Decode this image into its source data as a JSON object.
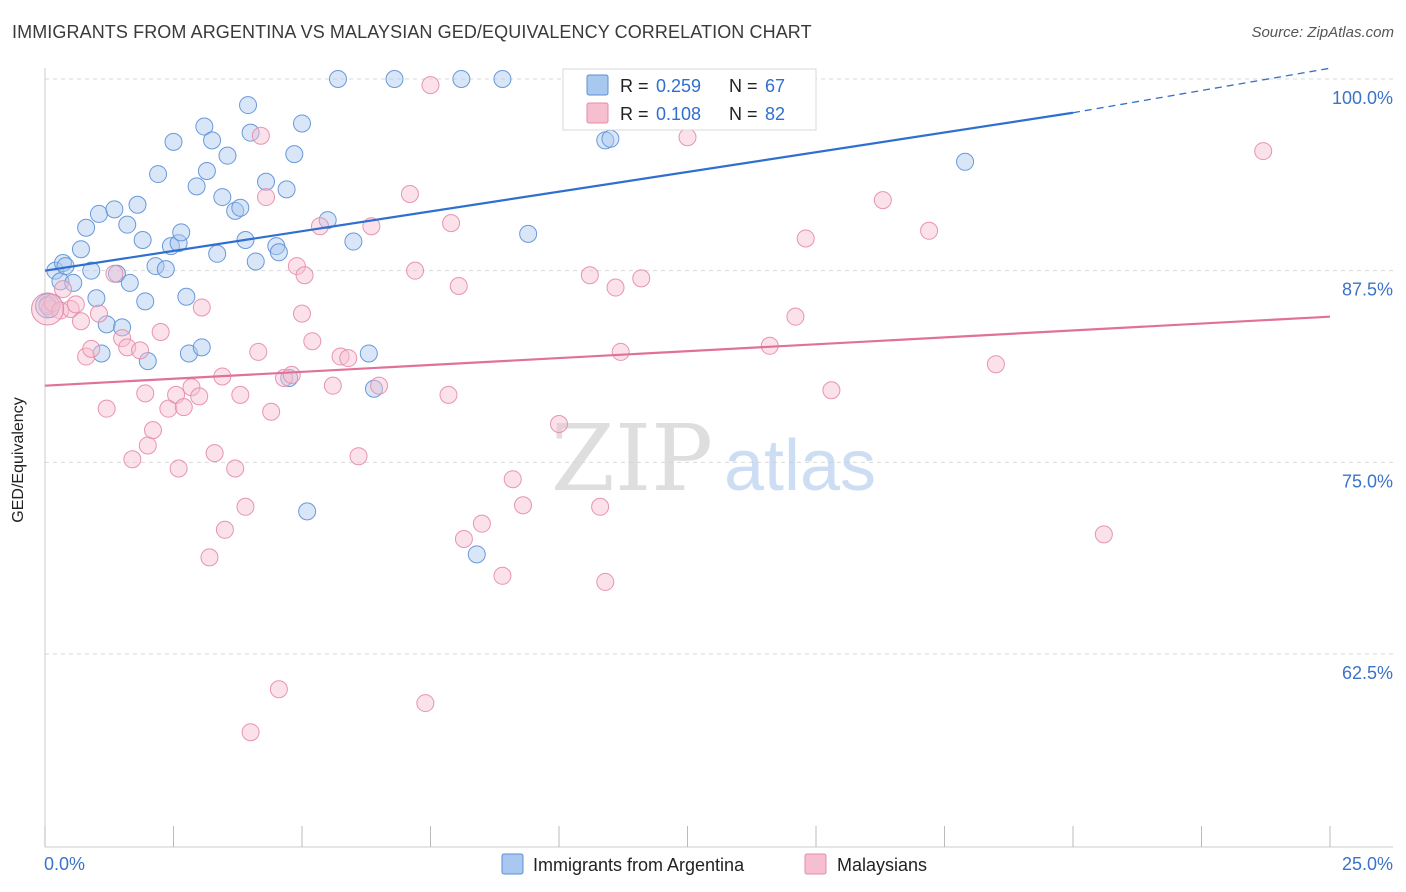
{
  "title": "IMMIGRANTS FROM ARGENTINA VS MALAYSIAN GED/EQUIVALENCY CORRELATION CHART",
  "source": "Source: ZipAtlas.com",
  "watermark": {
    "zip": "ZIP",
    "atlas": "atlas"
  },
  "colors": {
    "blue_fill": "#a9c8ef",
    "blue_stroke": "#5b8fd6",
    "blue_line": "#2f6fd0",
    "pink_fill": "#f6bfd0",
    "pink_stroke": "#e58aa8",
    "pink_line": "#e0719a",
    "tick_label": "#3b73c8",
    "grid": "#d9d9d9"
  },
  "legend": {
    "rows": [
      {
        "r_label": "R =",
        "r_value": "0.259",
        "n_label": "N =",
        "n_value": "67"
      },
      {
        "r_label": "R =",
        "r_value": "0.108",
        "n_label": "N =",
        "n_value": "82"
      }
    ]
  },
  "chart_data": {
    "type": "scatter",
    "xlabel": "",
    "ylabel": "GED/Equivalency",
    "xlim": [
      0,
      25
    ],
    "ylim": [
      50.5,
      101
    ],
    "x_tick_labels": {
      "left": "0.0%",
      "right": "25.0%"
    },
    "y_ticks": [
      {
        "value": 100,
        "label": "100.0%"
      },
      {
        "value": 87.5,
        "label": "87.5%"
      },
      {
        "value": 75,
        "label": "75.0%"
      },
      {
        "value": 62.5,
        "label": "62.5%"
      }
    ],
    "grid": "horizontal dashed",
    "legend_position": "top-center",
    "series": [
      {
        "name": "Immigrants from Argentina",
        "color": "#a9c8ef",
        "trend": {
          "x": [
            0,
            20
          ],
          "y": [
            87.5,
            97.8
          ],
          "dash_to": [
            25,
            100.7
          ]
        },
        "points": [
          [
            0.05,
            85.3
          ],
          [
            0.1,
            85.0
          ],
          [
            0.2,
            87.5
          ],
          [
            0.3,
            86.8
          ],
          [
            0.35,
            88.0
          ],
          [
            0.4,
            87.8
          ],
          [
            0.55,
            86.7
          ],
          [
            0.7,
            88.9
          ],
          [
            0.8,
            90.3
          ],
          [
            0.9,
            87.5
          ],
          [
            1.0,
            85.7
          ],
          [
            1.05,
            91.2
          ],
          [
            1.1,
            82.1
          ],
          [
            1.2,
            84.0
          ],
          [
            1.35,
            91.5
          ],
          [
            1.4,
            87.3
          ],
          [
            1.5,
            83.8
          ],
          [
            1.6,
            90.5
          ],
          [
            1.65,
            86.7
          ],
          [
            1.8,
            91.8
          ],
          [
            1.9,
            89.5
          ],
          [
            1.95,
            85.5
          ],
          [
            2.0,
            81.6
          ],
          [
            2.15,
            87.8
          ],
          [
            2.2,
            93.8
          ],
          [
            2.35,
            87.6
          ],
          [
            2.45,
            89.1
          ],
          [
            2.5,
            95.9
          ],
          [
            2.6,
            89.3
          ],
          [
            2.65,
            90.0
          ],
          [
            2.75,
            85.8
          ],
          [
            2.8,
            82.1
          ],
          [
            2.95,
            93.0
          ],
          [
            3.05,
            82.5
          ],
          [
            3.1,
            96.9
          ],
          [
            3.15,
            94.0
          ],
          [
            3.25,
            96.0
          ],
          [
            3.35,
            88.6
          ],
          [
            3.45,
            92.3
          ],
          [
            3.55,
            95.0
          ],
          [
            3.7,
            91.4
          ],
          [
            3.8,
            91.6
          ],
          [
            3.9,
            89.5
          ],
          [
            3.95,
            98.3
          ],
          [
            4.0,
            96.5
          ],
          [
            4.1,
            88.1
          ],
          [
            4.3,
            93.3
          ],
          [
            4.5,
            89.1
          ],
          [
            4.55,
            88.7
          ],
          [
            4.7,
            92.8
          ],
          [
            4.75,
            80.5
          ],
          [
            4.85,
            95.1
          ],
          [
            5.0,
            97.1
          ],
          [
            5.1,
            71.8
          ],
          [
            5.5,
            90.8
          ],
          [
            5.7,
            100.0
          ],
          [
            6.0,
            89.4
          ],
          [
            6.3,
            82.1
          ],
          [
            6.4,
            79.8
          ],
          [
            6.8,
            100.0
          ],
          [
            8.1,
            100.0
          ],
          [
            8.4,
            69.0
          ],
          [
            8.9,
            100.0
          ],
          [
            9.4,
            89.9
          ],
          [
            10.9,
            96.0
          ],
          [
            11.0,
            96.1
          ],
          [
            17.9,
            94.6
          ]
        ]
      },
      {
        "name": "Malaysians",
        "color": "#f6bfd0",
        "trend": {
          "x": [
            0,
            25
          ],
          "y": [
            80.0,
            84.5
          ]
        },
        "points": [
          [
            0.05,
            85.2
          ],
          [
            0.15,
            85.4
          ],
          [
            0.3,
            84.9
          ],
          [
            0.35,
            86.3
          ],
          [
            0.5,
            85.0
          ],
          [
            0.6,
            85.3
          ],
          [
            0.7,
            84.2
          ],
          [
            0.8,
            81.9
          ],
          [
            0.9,
            82.4
          ],
          [
            1.05,
            84.7
          ],
          [
            1.2,
            78.5
          ],
          [
            1.35,
            87.3
          ],
          [
            1.5,
            83.1
          ],
          [
            1.6,
            82.5
          ],
          [
            1.7,
            75.2
          ],
          [
            1.85,
            82.3
          ],
          [
            1.95,
            79.5
          ],
          [
            2.0,
            76.1
          ],
          [
            2.1,
            77.1
          ],
          [
            2.25,
            83.5
          ],
          [
            2.4,
            78.5
          ],
          [
            2.55,
            79.4
          ],
          [
            2.6,
            74.6
          ],
          [
            2.7,
            78.6
          ],
          [
            2.85,
            79.9
          ],
          [
            3.0,
            79.3
          ],
          [
            3.05,
            85.1
          ],
          [
            3.2,
            68.8
          ],
          [
            3.3,
            75.6
          ],
          [
            3.45,
            80.6
          ],
          [
            3.5,
            70.6
          ],
          [
            3.7,
            74.6
          ],
          [
            3.8,
            79.4
          ],
          [
            3.9,
            72.1
          ],
          [
            4.0,
            57.4
          ],
          [
            4.15,
            82.2
          ],
          [
            4.2,
            96.3
          ],
          [
            4.3,
            92.3
          ],
          [
            4.4,
            78.3
          ],
          [
            4.55,
            60.2
          ],
          [
            4.65,
            80.5
          ],
          [
            4.8,
            80.7
          ],
          [
            4.9,
            87.8
          ],
          [
            5.0,
            84.7
          ],
          [
            5.05,
            87.2
          ],
          [
            5.2,
            82.9
          ],
          [
            5.35,
            90.4
          ],
          [
            5.6,
            80.0
          ],
          [
            5.75,
            81.9
          ],
          [
            5.9,
            81.8
          ],
          [
            6.1,
            75.4
          ],
          [
            6.35,
            90.4
          ],
          [
            6.5,
            80.0
          ],
          [
            7.1,
            92.5
          ],
          [
            7.2,
            87.5
          ],
          [
            7.4,
            59.3
          ],
          [
            7.5,
            99.6
          ],
          [
            7.85,
            79.4
          ],
          [
            7.9,
            90.6
          ],
          [
            8.05,
            86.5
          ],
          [
            8.15,
            70.0
          ],
          [
            8.5,
            71.0
          ],
          [
            8.9,
            67.6
          ],
          [
            9.1,
            73.9
          ],
          [
            9.3,
            72.2
          ],
          [
            10.0,
            77.5
          ],
          [
            10.6,
            87.2
          ],
          [
            10.8,
            72.1
          ],
          [
            10.9,
            67.2
          ],
          [
            11.1,
            86.4
          ],
          [
            11.2,
            82.2
          ],
          [
            11.6,
            87.0
          ],
          [
            12.5,
            96.2
          ],
          [
            14.1,
            82.6
          ],
          [
            14.6,
            84.5
          ],
          [
            14.8,
            89.6
          ],
          [
            15.3,
            79.7
          ],
          [
            16.3,
            92.1
          ],
          [
            17.2,
            90.1
          ],
          [
            18.5,
            81.4
          ],
          [
            20.6,
            70.3
          ],
          [
            23.7,
            95.3
          ]
        ]
      }
    ]
  }
}
